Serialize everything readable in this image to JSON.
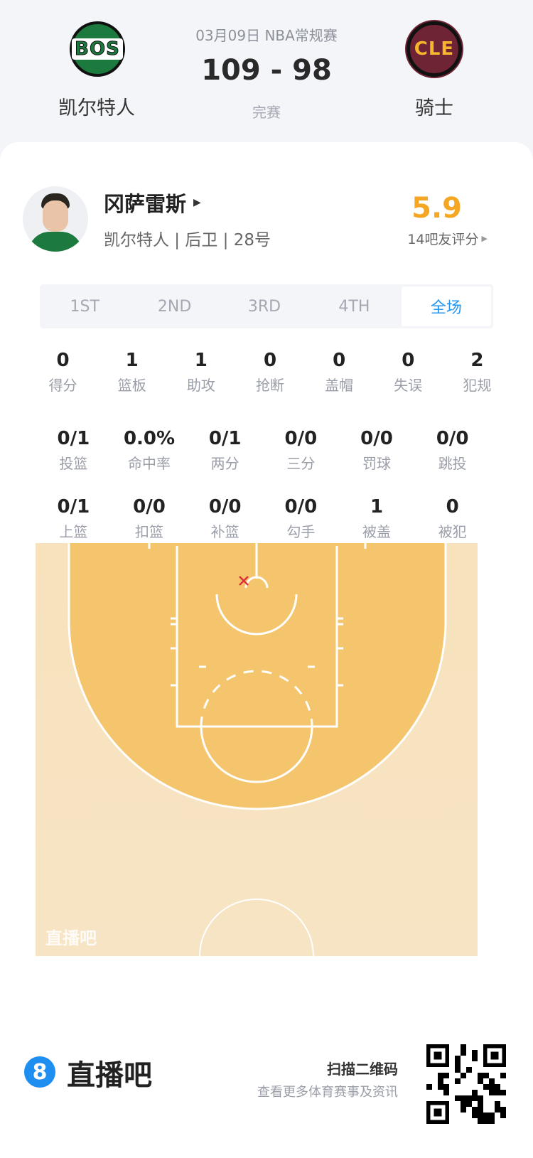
{
  "header": {
    "date_league": "03月09日 NBA常规赛",
    "score": "109 - 98",
    "status": "完赛",
    "home": {
      "abbr": "BOS",
      "name": "凯尔特人"
    },
    "away": {
      "abbr": "CLE",
      "name": "骑士"
    }
  },
  "player": {
    "name": "冈萨雷斯",
    "info": "凯尔特人 | 后卫 | 28号",
    "rating": "5.9",
    "rating_label": "14吧友评分",
    "rating_color": "#f5a623"
  },
  "tabs": [
    {
      "label": "1ST"
    },
    {
      "label": "2ND"
    },
    {
      "label": "3RD"
    },
    {
      "label": "4TH"
    },
    {
      "label": "全场",
      "active": true
    }
  ],
  "stats_row1": [
    {
      "v": "0",
      "l": "得分"
    },
    {
      "v": "1",
      "l": "篮板"
    },
    {
      "v": "1",
      "l": "助攻"
    },
    {
      "v": "0",
      "l": "抢断"
    },
    {
      "v": "0",
      "l": "盖帽"
    },
    {
      "v": "0",
      "l": "失误"
    },
    {
      "v": "2",
      "l": "犯规"
    }
  ],
  "stats_row2": [
    {
      "v": "0/1",
      "l": "投篮"
    },
    {
      "v": "0.0%",
      "l": "命中率"
    },
    {
      "v": "0/1",
      "l": "两分"
    },
    {
      "v": "0/0",
      "l": "三分"
    },
    {
      "v": "0/0",
      "l": "罚球"
    },
    {
      "v": "0/0",
      "l": "跳投"
    }
  ],
  "stats_row3": [
    {
      "v": "0/1",
      "l": "上篮"
    },
    {
      "v": "0/0",
      "l": "扣篮"
    },
    {
      "v": "0/0",
      "l": "补篮"
    },
    {
      "v": "0/0",
      "l": "勾手"
    },
    {
      "v": "1",
      "l": "被盖"
    },
    {
      "v": "0",
      "l": "被犯"
    }
  ],
  "court": {
    "watermark": "直播吧",
    "shots": [
      {
        "result": "miss"
      }
    ]
  },
  "footer": {
    "brand": "直播吧",
    "scan_title": "扫描二维码",
    "scan_sub": "查看更多体育赛事及资讯"
  }
}
